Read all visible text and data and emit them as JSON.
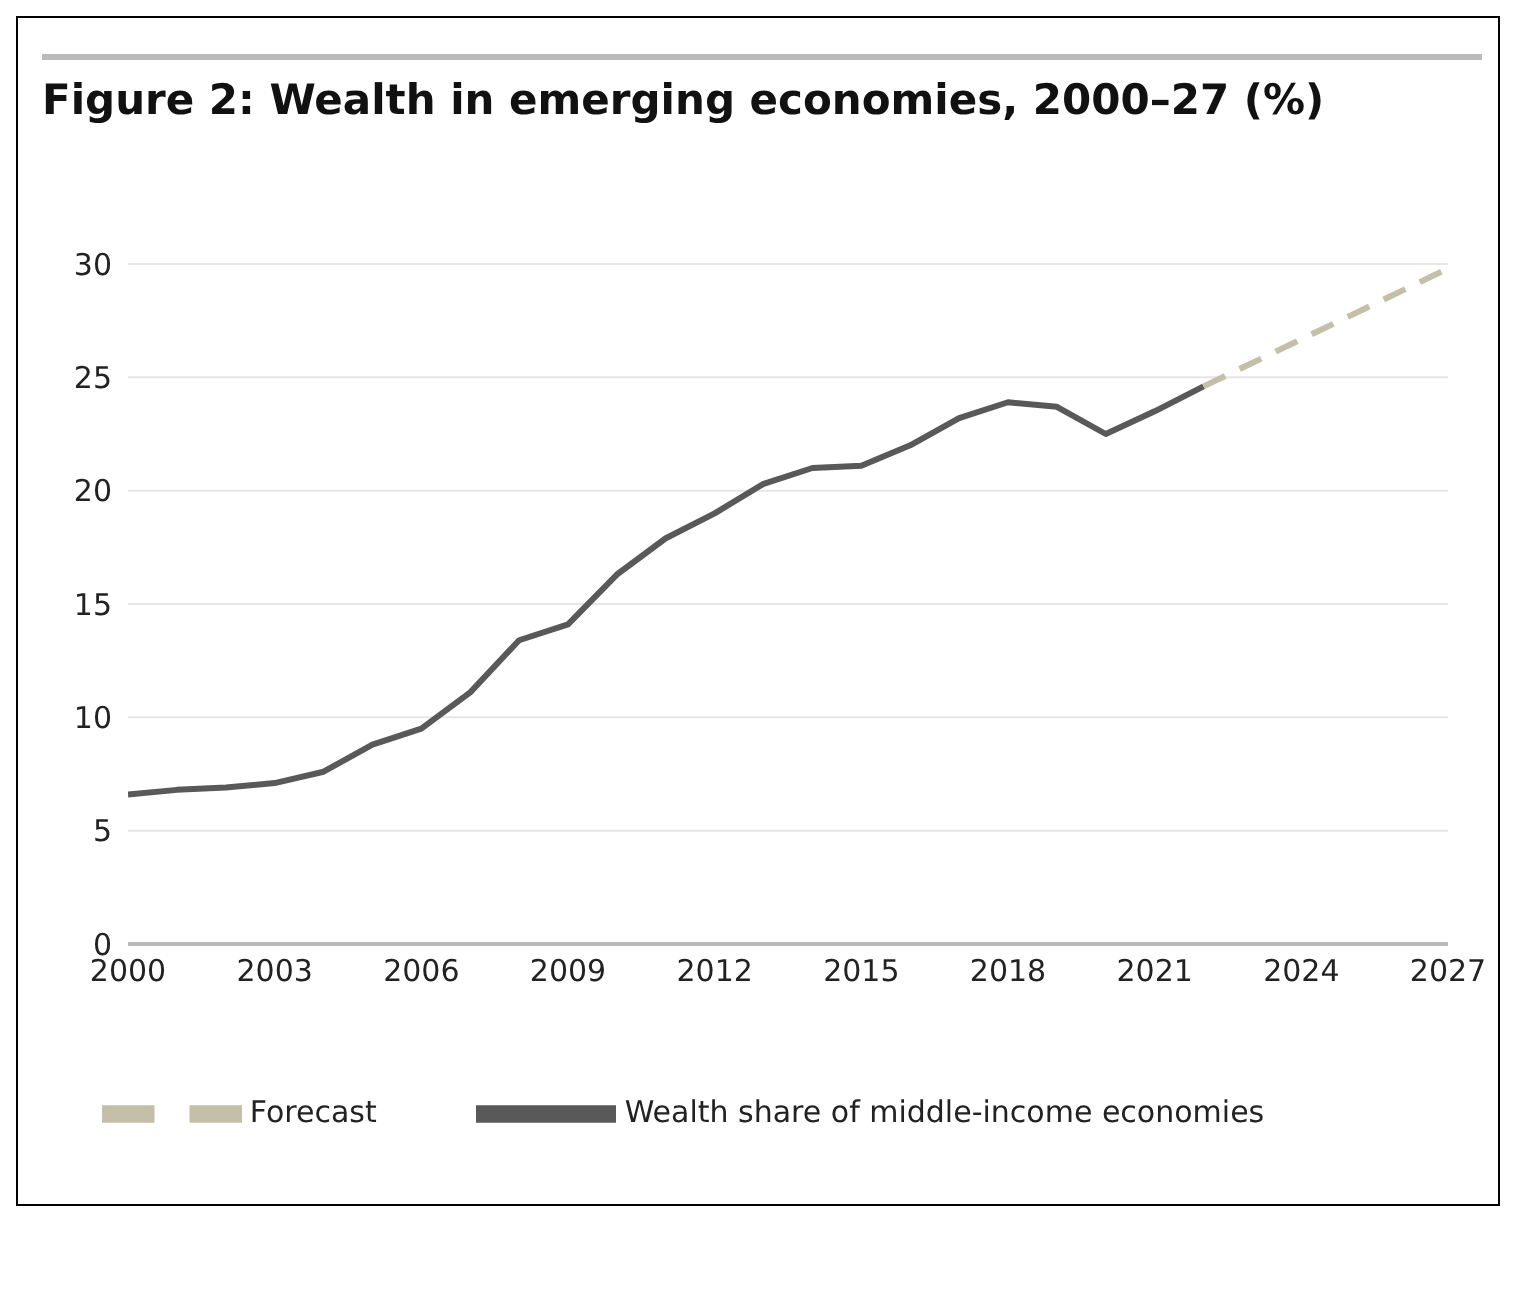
{
  "chart_data": {
    "type": "line",
    "title": "Figure 2: Wealth in emerging economies, 2000–27 (%)",
    "series": [
      {
        "name": "Wealth share of middle-income economies",
        "color": "#595959",
        "line_style": "solid",
        "x": [
          2000,
          2001,
          2002,
          2003,
          2004,
          2005,
          2006,
          2007,
          2008,
          2009,
          2010,
          2011,
          2012,
          2013,
          2014,
          2015,
          2016,
          2017,
          2018,
          2019,
          2020,
          2021,
          2022
        ],
        "values": [
          6.6,
          6.8,
          6.9,
          7.1,
          7.6,
          8.8,
          9.5,
          11.1,
          13.4,
          14.1,
          16.3,
          17.9,
          19.0,
          20.3,
          21.0,
          21.1,
          22.0,
          23.2,
          23.9,
          23.7,
          22.5,
          23.5,
          24.6
        ]
      },
      {
        "name": "Forecast",
        "color": "#c4bfa8",
        "line_style": "dashed",
        "x": [
          2022,
          2027
        ],
        "values": [
          24.6,
          29.8
        ]
      }
    ],
    "xlim": [
      2000,
      2027
    ],
    "xticks": [
      2000,
      2003,
      2006,
      2009,
      2012,
      2015,
      2018,
      2021,
      2024,
      2027
    ],
    "ylim": [
      0,
      30
    ],
    "yticks": [
      0,
      5,
      10,
      15,
      20,
      25,
      30
    ],
    "grid": "y",
    "legend": "bottom",
    "marker": "none"
  }
}
